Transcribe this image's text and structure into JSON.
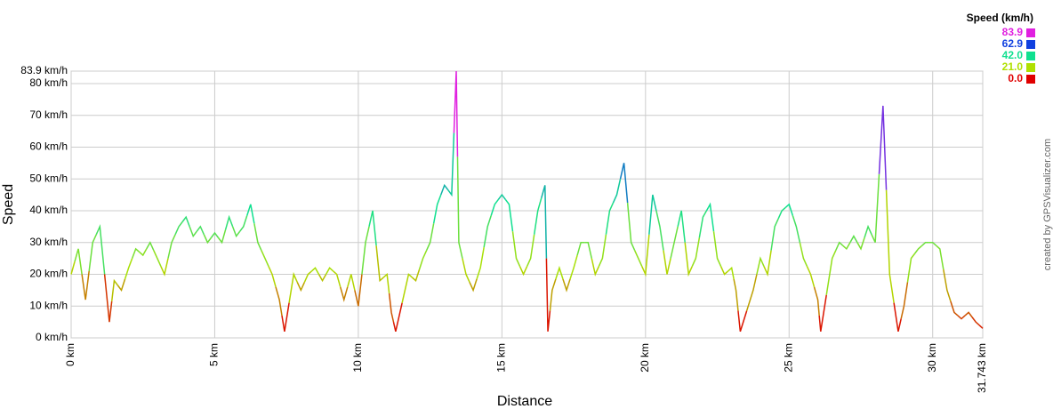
{
  "chart_data": {
    "type": "line",
    "x_axis_label": "Distance",
    "y_axis_label": "Speed",
    "credit": "created by GPSVisualizer.com",
    "legend_title": "Speed (km/h)",
    "color_scale": [
      {
        "value": 83.9,
        "color": "#e020e0"
      },
      {
        "value": 62.9,
        "color": "#1040e0"
      },
      {
        "value": 42.0,
        "label": "42.0",
        "color": "#10e090"
      },
      {
        "value": 21.0,
        "label": "21.0",
        "color": "#b0e000"
      },
      {
        "value": 0.0,
        "label": "0.0",
        "color": "#e00000"
      }
    ],
    "xlim": [
      0,
      31.743
    ],
    "xticks": [
      {
        "value": 0,
        "label": "0 km"
      },
      {
        "value": 5,
        "label": "5 km"
      },
      {
        "value": 10,
        "label": "10 km"
      },
      {
        "value": 15,
        "label": "15 km"
      },
      {
        "value": 20,
        "label": "20 km"
      },
      {
        "value": 25,
        "label": "25 km"
      },
      {
        "value": 30,
        "label": "30 km"
      },
      {
        "value": 31.743,
        "label": "31.743 km"
      }
    ],
    "ylim": [
      0,
      83.9
    ],
    "yticks": [
      {
        "value": 0,
        "label": "0 km/h"
      },
      {
        "value": 10,
        "label": "10 km/h"
      },
      {
        "value": 20,
        "label": "20 km/h"
      },
      {
        "value": 30,
        "label": "30 km/h"
      },
      {
        "value": 40,
        "label": "40 km/h"
      },
      {
        "value": 50,
        "label": "50 km/h"
      },
      {
        "value": 60,
        "label": "60 km/h"
      },
      {
        "value": 70,
        "label": "70 km/h"
      },
      {
        "value": 80,
        "label": "80 km/h"
      },
      {
        "value": 83.9,
        "label": "83.9 km/h"
      }
    ],
    "grid": true,
    "x": [
      0,
      0.25,
      0.5,
      0.75,
      1,
      1.33,
      1.5,
      1.75,
      2,
      2.25,
      2.5,
      2.75,
      3,
      3.25,
      3.5,
      3.75,
      4,
      4.25,
      4.5,
      4.75,
      5,
      5.25,
      5.5,
      5.75,
      6,
      6.25,
      6.5,
      6.75,
      7,
      7.25,
      7.43,
      7.75,
      8,
      8.25,
      8.5,
      8.75,
      9,
      9.25,
      9.5,
      9.75,
      10,
      10.25,
      10.5,
      10.75,
      11,
      11.15,
      11.3,
      11.75,
      12,
      12.25,
      12.5,
      12.75,
      13,
      13.25,
      13.41,
      13.5,
      13.75,
      14,
      14.25,
      14.5,
      14.75,
      15,
      15.25,
      15.5,
      15.75,
      16,
      16.25,
      16.5,
      16.6,
      16.75,
      17,
      17.25,
      17.5,
      17.75,
      18,
      18.25,
      18.5,
      18.75,
      19,
      19.25,
      19.5,
      19.75,
      20,
      20.25,
      20.5,
      20.75,
      21,
      21.25,
      21.5,
      21.75,
      22,
      22.25,
      22.5,
      22.75,
      23,
      23.15,
      23.3,
      23.75,
      24,
      24.25,
      24.5,
      24.75,
      25,
      25.25,
      25.5,
      25.75,
      26,
      26.1,
      26.5,
      26.75,
      27,
      27.25,
      27.5,
      27.75,
      28,
      28.27,
      28.5,
      28.8,
      29,
      29.25,
      29.5,
      29.75,
      30,
      30.25,
      30.5,
      30.75,
      31,
      31.25,
      31.5,
      31.743
    ],
    "values": [
      20,
      28,
      12,
      30,
      35,
      5,
      18,
      15,
      22,
      28,
      26,
      30,
      25,
      20,
      30,
      35,
      38,
      32,
      35,
      30,
      33,
      30,
      38,
      32,
      35,
      42,
      30,
      25,
      20,
      12,
      2,
      20,
      15,
      20,
      22,
      18,
      22,
      20,
      12,
      20,
      10,
      30,
      40,
      18,
      20,
      8,
      2,
      20,
      18,
      25,
      30,
      42,
      48,
      45,
      83.9,
      30,
      20,
      15,
      22,
      35,
      42,
      45,
      42,
      25,
      20,
      25,
      40,
      48,
      2,
      15,
      22,
      15,
      22,
      30,
      30,
      20,
      25,
      40,
      45,
      55,
      30,
      25,
      20,
      45,
      35,
      20,
      30,
      40,
      20,
      25,
      38,
      42,
      25,
      20,
      22,
      15,
      2,
      15,
      25,
      20,
      35,
      40,
      42,
      35,
      25,
      20,
      12,
      2,
      25,
      30,
      28,
      32,
      28,
      35,
      30,
      73,
      20,
      2,
      10,
      25,
      28,
      30,
      30,
      28,
      15,
      8,
      6,
      8,
      5,
      3
    ]
  }
}
